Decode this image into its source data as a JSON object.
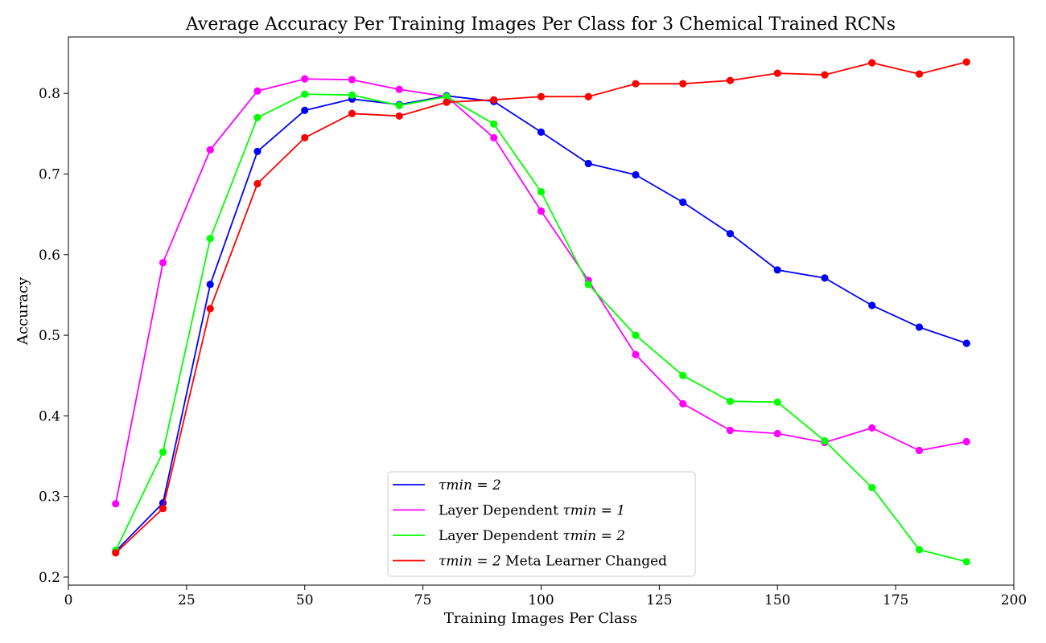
{
  "chart_data": {
    "type": "line",
    "title": "Average Accuracy Per Training Images Per Class for 3 Chemical Trained RCNs",
    "xlabel": "Training Images Per Class",
    "ylabel": "Accuracy",
    "xlim": [
      0,
      200
    ],
    "ylim": [
      0.19,
      0.87
    ],
    "xticks": [
      0,
      25,
      50,
      75,
      100,
      125,
      150,
      175,
      200
    ],
    "yticks": [
      0.2,
      0.3,
      0.4,
      0.5,
      0.6,
      0.7,
      0.8
    ],
    "xtick_labels": [
      "0",
      "25",
      "50",
      "75",
      "100",
      "125",
      "150",
      "175",
      "200"
    ],
    "ytick_labels": [
      "0.2",
      "0.3",
      "0.4",
      "0.5",
      "0.6",
      "0.7",
      "0.8"
    ],
    "grid": false,
    "legend_position": "lower-center",
    "x": [
      10,
      20,
      30,
      40,
      50,
      60,
      70,
      80,
      90,
      100,
      110,
      120,
      130,
      140,
      150,
      160,
      170,
      180,
      190
    ],
    "series": [
      {
        "name_prefix": "",
        "name_math": "τmin = 2",
        "name_suffix": "",
        "color": "#0000ff",
        "values": [
          0.232,
          0.292,
          0.563,
          0.728,
          0.779,
          0.793,
          0.786,
          0.797,
          0.79,
          0.752,
          0.713,
          0.699,
          0.665,
          0.626,
          0.581,
          0.571,
          0.537,
          0.51,
          0.49
        ]
      },
      {
        "name_prefix": "Layer Dependent ",
        "name_math": "τmin = 1",
        "name_suffix": "",
        "color": "#ff00ff",
        "values": [
          0.291,
          0.59,
          0.73,
          0.803,
          0.818,
          0.817,
          0.805,
          0.796,
          0.745,
          0.654,
          0.568,
          0.476,
          0.415,
          0.382,
          0.378,
          0.367,
          0.385,
          0.357,
          0.368
        ]
      },
      {
        "name_prefix": "Layer Dependent ",
        "name_math": "τmin = 2",
        "name_suffix": "",
        "color": "#00ff00",
        "values": [
          0.233,
          0.355,
          0.62,
          0.77,
          0.799,
          0.798,
          0.785,
          0.796,
          0.762,
          0.678,
          0.563,
          0.5,
          0.45,
          0.418,
          0.417,
          0.369,
          0.311,
          0.234,
          0.219
        ]
      },
      {
        "name_prefix": "",
        "name_math": "τmin = 2",
        "name_suffix": " Meta Learner Changed",
        "color": "#ff0000",
        "values": [
          0.23,
          0.285,
          0.533,
          0.688,
          0.745,
          0.775,
          0.772,
          0.789,
          0.792,
          0.796,
          0.796,
          0.812,
          0.812,
          0.816,
          0.825,
          0.823,
          0.838,
          0.824,
          0.839
        ]
      }
    ]
  }
}
